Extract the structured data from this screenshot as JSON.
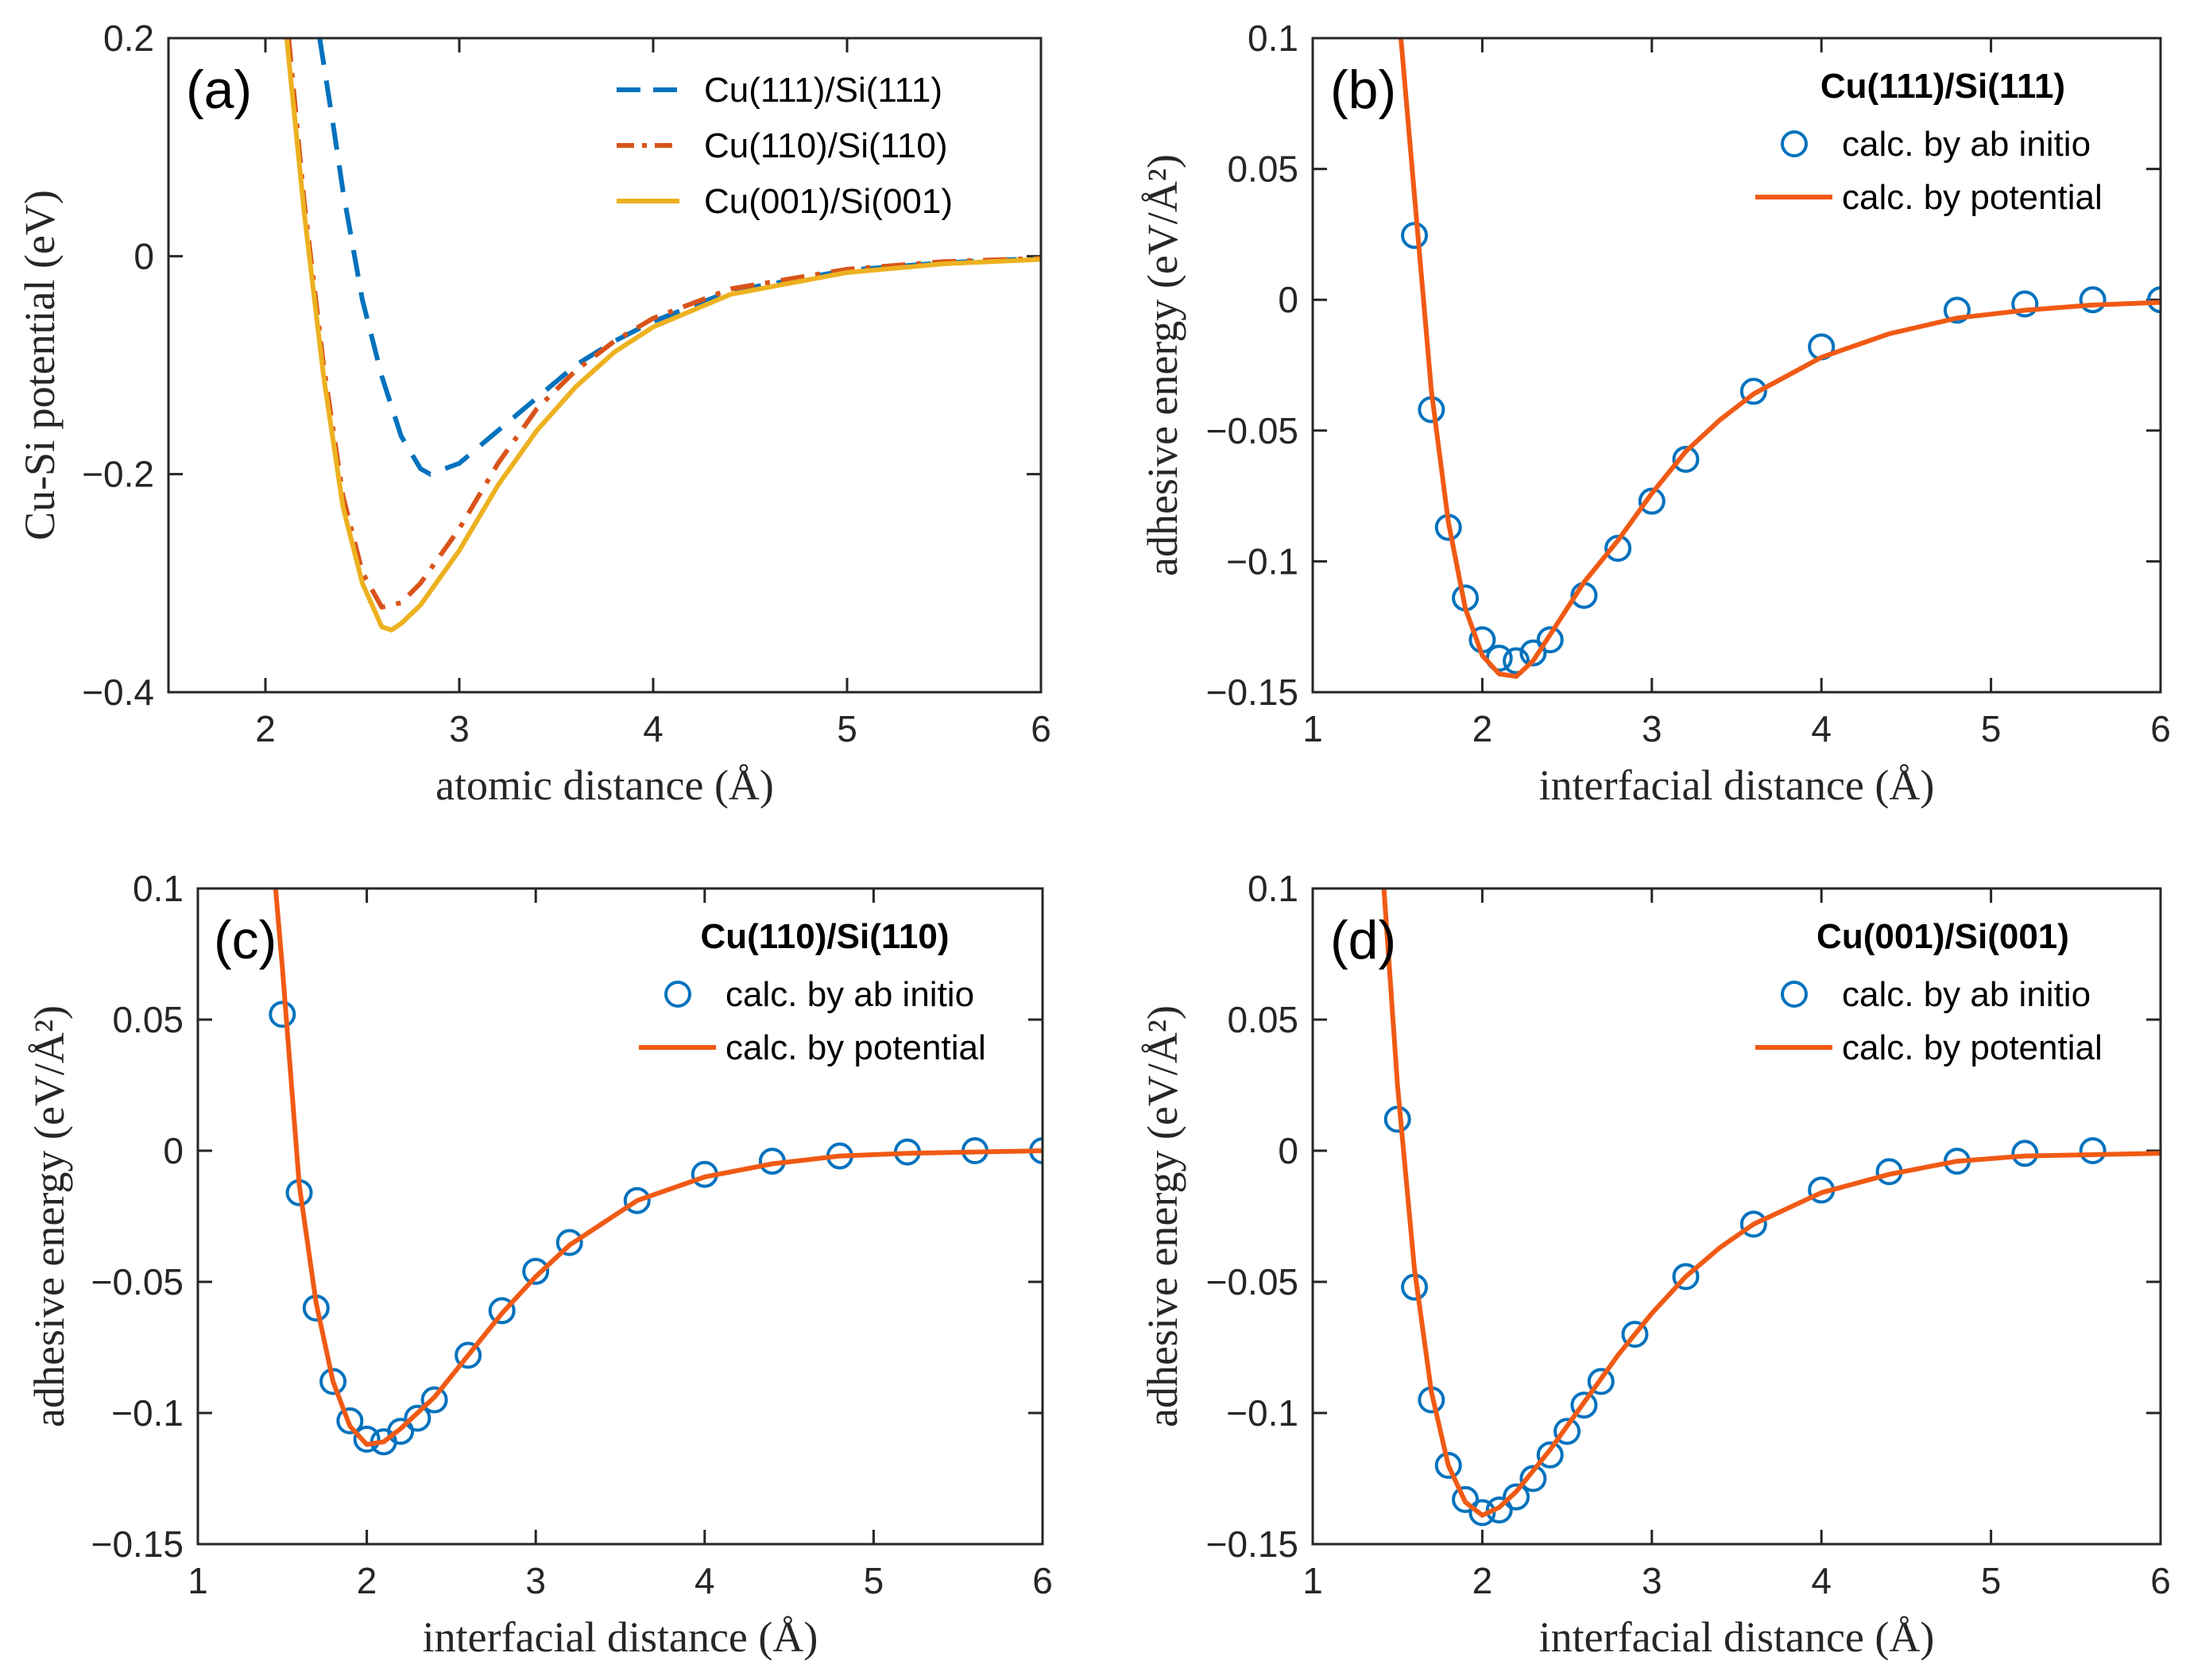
{
  "chart_data": [
    {
      "id": "a",
      "type": "line",
      "panel_label": "(a)",
      "xlabel": "atomic distance (Å)",
      "ylabel": "Cu-Si potential (eV)",
      "xlim": [
        1.5,
        6
      ],
      "ylim": [
        -0.4,
        0.2
      ],
      "xticks": [
        2,
        3,
        4,
        5,
        6
      ],
      "xtick_labels": [
        "2",
        "3",
        "4",
        "5",
        "6"
      ],
      "yticks": [
        -0.4,
        -0.2,
        0,
        0.2
      ],
      "ytick_labels": [
        "−0.4",
        "−0.2",
        "0",
        "0.2"
      ],
      "legend_position": "top-right",
      "series": [
        {
          "name": "Cu(111)/Si(111)",
          "style": "dashed",
          "color": "#0072BD",
          "x": [
            2.28,
            2.35,
            2.4,
            2.5,
            2.6,
            2.7,
            2.8,
            2.85,
            3.0,
            3.2,
            3.4,
            3.6,
            3.8,
            4.0,
            4.4,
            5.0,
            5.5,
            6.0
          ],
          "y": [
            0.2,
            0.12,
            0.06,
            -0.04,
            -0.11,
            -0.165,
            -0.195,
            -0.2,
            -0.19,
            -0.16,
            -0.13,
            -0.1,
            -0.078,
            -0.06,
            -0.032,
            -0.013,
            -0.006,
            -0.002
          ]
        },
        {
          "name": "Cu(110)/Si(110)",
          "style": "dashdot",
          "color": "#D95319",
          "x": [
            2.12,
            2.2,
            2.3,
            2.4,
            2.5,
            2.6,
            2.7,
            2.8,
            3.0,
            3.2,
            3.4,
            3.6,
            3.8,
            4.0,
            4.4,
            5.0,
            5.5,
            6.0
          ],
          "y": [
            0.2,
            0.05,
            -0.1,
            -0.22,
            -0.29,
            -0.322,
            -0.318,
            -0.3,
            -0.25,
            -0.19,
            -0.14,
            -0.105,
            -0.078,
            -0.057,
            -0.03,
            -0.012,
            -0.005,
            -0.002
          ]
        },
        {
          "name": "Cu(001)/Si(001)",
          "style": "solid",
          "color": "#EDB120",
          "x": [
            2.11,
            2.2,
            2.3,
            2.4,
            2.5,
            2.6,
            2.65,
            2.7,
            2.8,
            3.0,
            3.2,
            3.4,
            3.6,
            3.8,
            4.0,
            4.4,
            5.0,
            5.5,
            6.0
          ],
          "y": [
            0.2,
            0.04,
            -0.11,
            -0.23,
            -0.3,
            -0.34,
            -0.343,
            -0.337,
            -0.32,
            -0.27,
            -0.21,
            -0.16,
            -0.12,
            -0.088,
            -0.065,
            -0.035,
            -0.015,
            -0.007,
            -0.003
          ]
        }
      ]
    },
    {
      "id": "b",
      "type": "line",
      "panel_label": "(b)",
      "legend_title": "Cu(111)/Si(111)",
      "xlabel": "interfacial distance (Å)",
      "ylabel": "adhesive energy (eV/Å²)",
      "xlim": [
        1,
        6
      ],
      "ylim": [
        -0.15,
        0.1
      ],
      "xticks": [
        1,
        2,
        3,
        4,
        5,
        6
      ],
      "xtick_labels": [
        "1",
        "2",
        "3",
        "4",
        "5",
        "6"
      ],
      "yticks": [
        -0.15,
        -0.1,
        -0.05,
        0,
        0.05,
        0.1
      ],
      "ytick_labels": [
        "−0.15",
        "−0.1",
        "−0.05",
        "0",
        "0.05",
        "0.1"
      ],
      "legend_position": "top-right",
      "series": [
        {
          "name": "calc. by ab initio",
          "style": "circles",
          "color": "#0072BD",
          "x": [
            1.6,
            1.7,
            1.8,
            1.9,
            2.0,
            2.1,
            2.2,
            2.3,
            2.4,
            2.6,
            2.8,
            3.0,
            3.2,
            3.6,
            4.0,
            4.8,
            5.2,
            5.6,
            6.0
          ],
          "y": [
            0.0246,
            -0.042,
            -0.087,
            -0.114,
            -0.13,
            -0.137,
            -0.138,
            -0.135,
            -0.13,
            -0.113,
            -0.095,
            -0.077,
            -0.061,
            -0.035,
            -0.018,
            -0.004,
            -0.0016,
            0,
            0
          ]
        },
        {
          "name": "calc. by potential",
          "style": "solid",
          "color": "#F05A14",
          "x": [
            1.52,
            1.6,
            1.7,
            1.8,
            1.9,
            2.0,
            2.1,
            2.2,
            2.3,
            2.4,
            2.6,
            2.8,
            3.0,
            3.2,
            3.4,
            3.6,
            3.8,
            4.0,
            4.4,
            4.8,
            5.2,
            5.6,
            6.0
          ],
          "y": [
            0.1,
            0.04,
            -0.035,
            -0.085,
            -0.118,
            -0.136,
            -0.143,
            -0.144,
            -0.138,
            -0.128,
            -0.108,
            -0.092,
            -0.074,
            -0.058,
            -0.046,
            -0.036,
            -0.029,
            -0.022,
            -0.013,
            -0.007,
            -0.004,
            -0.002,
            -0.001
          ]
        }
      ]
    },
    {
      "id": "c",
      "type": "line",
      "panel_label": "(c)",
      "legend_title": "Cu(110)/Si(110)",
      "xlabel": "interfacial distance (Å)",
      "ylabel": "adhesive energy (eV/Å²)",
      "xlim": [
        1,
        6
      ],
      "ylim": [
        -0.15,
        0.1
      ],
      "xticks": [
        1,
        2,
        3,
        4,
        5,
        6
      ],
      "xtick_labels": [
        "1",
        "2",
        "3",
        "4",
        "5",
        "6"
      ],
      "yticks": [
        -0.15,
        -0.1,
        -0.05,
        0,
        0.05,
        0.1
      ],
      "ytick_labels": [
        "−0.15",
        "−0.1",
        "−0.05",
        "0",
        "0.05",
        "0.1"
      ],
      "legend_position": "top-right",
      "series": [
        {
          "name": "calc. by ab initio",
          "style": "circles",
          "color": "#0072BD",
          "x": [
            1.5,
            1.6,
            1.7,
            1.8,
            1.9,
            2.0,
            2.1,
            2.2,
            2.3,
            2.4,
            2.6,
            2.8,
            3.0,
            3.2,
            3.6,
            4.0,
            4.4,
            4.8,
            5.2,
            5.6,
            6.0
          ],
          "y": [
            0.052,
            -0.016,
            -0.06,
            -0.088,
            -0.103,
            -0.11,
            -0.111,
            -0.107,
            -0.102,
            -0.095,
            -0.078,
            -0.061,
            -0.046,
            -0.035,
            -0.019,
            -0.009,
            -0.004,
            -0.002,
            -0.0005,
            0,
            0
          ]
        },
        {
          "name": "calc. by potential",
          "style": "solid",
          "color": "#F05A14",
          "x": [
            1.46,
            1.5,
            1.6,
            1.7,
            1.8,
            1.9,
            2.0,
            2.1,
            2.2,
            2.4,
            2.6,
            2.8,
            3.0,
            3.2,
            3.6,
            4.0,
            4.4,
            4.8,
            5.2,
            6.0
          ],
          "y": [
            0.1,
            0.07,
            -0.013,
            -0.058,
            -0.088,
            -0.105,
            -0.112,
            -0.111,
            -0.106,
            -0.094,
            -0.078,
            -0.062,
            -0.048,
            -0.036,
            -0.019,
            -0.01,
            -0.005,
            -0.002,
            -0.001,
            0
          ]
        }
      ]
    },
    {
      "id": "d",
      "type": "line",
      "panel_label": "(d)",
      "legend_title": "Cu(001)/Si(001)",
      "xlabel": "interfacial distance (Å)",
      "ylabel": "adhesive energy (eV/Å²)",
      "xlim": [
        1,
        6
      ],
      "ylim": [
        -0.15,
        0.1
      ],
      "xticks": [
        1,
        2,
        3,
        4,
        5,
        6
      ],
      "xtick_labels": [
        "1",
        "2",
        "3",
        "4",
        "5",
        "6"
      ],
      "yticks": [
        -0.15,
        -0.1,
        -0.05,
        0,
        0.05,
        0.1
      ],
      "ytick_labels": [
        "−0.15",
        "−0.1",
        "−0.05",
        "0",
        "0.05",
        "0.1"
      ],
      "legend_position": "top-right",
      "series": [
        {
          "name": "calc. by ab initio",
          "style": "circles",
          "color": "#0072BD",
          "x": [
            1.5,
            1.6,
            1.7,
            1.8,
            1.9,
            2.0,
            2.1,
            2.2,
            2.3,
            2.4,
            2.5,
            2.6,
            2.7,
            2.9,
            3.2,
            3.6,
            4.0,
            4.4,
            4.8,
            5.2,
            5.6
          ],
          "y": [
            0.012,
            -0.052,
            -0.095,
            -0.12,
            -0.133,
            -0.138,
            -0.137,
            -0.132,
            -0.125,
            -0.116,
            -0.107,
            -0.097,
            -0.088,
            -0.07,
            -0.048,
            -0.028,
            -0.015,
            -0.008,
            -0.004,
            -0.001,
            0
          ]
        },
        {
          "name": "calc. by potential",
          "style": "solid",
          "color": "#F05A14",
          "x": [
            1.42,
            1.5,
            1.6,
            1.7,
            1.8,
            1.9,
            2.0,
            2.1,
            2.2,
            2.4,
            2.6,
            2.8,
            3.0,
            3.2,
            3.4,
            3.6,
            4.0,
            4.4,
            4.8,
            5.2,
            6.0
          ],
          "y": [
            0.1,
            0.025,
            -0.045,
            -0.092,
            -0.12,
            -0.134,
            -0.139,
            -0.136,
            -0.13,
            -0.114,
            -0.096,
            -0.078,
            -0.062,
            -0.048,
            -0.037,
            -0.028,
            -0.016,
            -0.009,
            -0.004,
            -0.002,
            -0.001
          ]
        }
      ]
    }
  ]
}
